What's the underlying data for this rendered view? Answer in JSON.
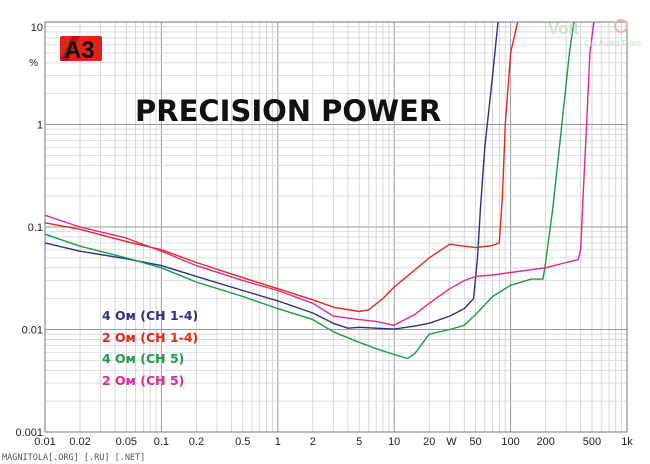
{
  "logo": {
    "text": "A3",
    "color": "#e3231b"
  },
  "watermark": {
    "text": "Volt",
    "sub": "Car Audio Team"
  },
  "footer": "MAGNITOLA[.ORG] [.RU] [.NET]",
  "chart_data": {
    "type": "line",
    "title": "PRECISION POWER",
    "x_scale": "log",
    "y_scale": "log",
    "xlim": [
      0.01,
      1000
    ],
    "ylim": [
      0.001,
      10
    ],
    "xlabel": "W",
    "ylabel": "%",
    "grid": true,
    "legend_position": "left-middle",
    "x_ticks": [
      {
        "v": 0.01,
        "label": "0.01"
      },
      {
        "v": 0.02,
        "label": "0.02"
      },
      {
        "v": 0.05,
        "label": "0.05"
      },
      {
        "v": 0.1,
        "label": "0.1"
      },
      {
        "v": 0.2,
        "label": "0.2"
      },
      {
        "v": 0.5,
        "label": "0.5"
      },
      {
        "v": 1,
        "label": "1"
      },
      {
        "v": 2,
        "label": "2"
      },
      {
        "v": 5,
        "label": "5"
      },
      {
        "v": 10,
        "label": "10"
      },
      {
        "v": 20,
        "label": "20"
      },
      {
        "v": 50,
        "label": "50"
      },
      {
        "v": 100,
        "label": "100"
      },
      {
        "v": 200,
        "label": "200"
      },
      {
        "v": 500,
        "label": "500"
      },
      {
        "v": 1000,
        "label": "1k"
      }
    ],
    "y_ticks": [
      {
        "v": 10,
        "label": "10"
      },
      {
        "v": 1,
        "label": "1"
      },
      {
        "v": 0.1,
        "label": "0.1"
      },
      {
        "v": 0.01,
        "label": "0.01"
      },
      {
        "v": 0.001,
        "label": "0.001"
      }
    ],
    "series": [
      {
        "name": "4 Ом (CH 1-4)",
        "color": "#2e2f86",
        "points": [
          [
            0.01,
            0.07
          ],
          [
            0.02,
            0.058
          ],
          [
            0.05,
            0.049
          ],
          [
            0.1,
            0.042
          ],
          [
            0.2,
            0.033
          ],
          [
            0.5,
            0.024
          ],
          [
            1,
            0.019
          ],
          [
            2,
            0.0145
          ],
          [
            3,
            0.0115
          ],
          [
            4,
            0.0103
          ],
          [
            5,
            0.0105
          ],
          [
            7,
            0.0103
          ],
          [
            10,
            0.0101
          ],
          [
            15,
            0.0108
          ],
          [
            20,
            0.0115
          ],
          [
            30,
            0.0135
          ],
          [
            40,
            0.016
          ],
          [
            48,
            0.02
          ],
          [
            52,
            0.05
          ],
          [
            55,
            0.15
          ],
          [
            60,
            0.6
          ],
          [
            70,
            3
          ],
          [
            78,
            10
          ]
        ]
      },
      {
        "name": "2 Ом (CH 1-4)",
        "color": "#e1291a",
        "points": [
          [
            0.01,
            0.11
          ],
          [
            0.02,
            0.095
          ],
          [
            0.05,
            0.072
          ],
          [
            0.1,
            0.06
          ],
          [
            0.2,
            0.045
          ],
          [
            0.5,
            0.032
          ],
          [
            1,
            0.025
          ],
          [
            2,
            0.0195
          ],
          [
            3,
            0.0165
          ],
          [
            5,
            0.015
          ],
          [
            6,
            0.0155
          ],
          [
            8,
            0.02
          ],
          [
            10,
            0.026
          ],
          [
            15,
            0.038
          ],
          [
            20,
            0.05
          ],
          [
            30,
            0.068
          ],
          [
            40,
            0.065
          ],
          [
            50,
            0.063
          ],
          [
            70,
            0.066
          ],
          [
            80,
            0.07
          ],
          [
            85,
            0.2
          ],
          [
            90,
            1
          ],
          [
            100,
            5
          ],
          [
            115,
            10
          ]
        ]
      },
      {
        "name": "4 Ом (CH 5)",
        "color": "#1a9a4a",
        "points": [
          [
            0.01,
            0.085
          ],
          [
            0.02,
            0.065
          ],
          [
            0.05,
            0.05
          ],
          [
            0.1,
            0.04
          ],
          [
            0.2,
            0.029
          ],
          [
            0.5,
            0.021
          ],
          [
            1,
            0.016
          ],
          [
            2,
            0.0125
          ],
          [
            3,
            0.0095
          ],
          [
            5,
            0.0075
          ],
          [
            7,
            0.0065
          ],
          [
            10,
            0.0057
          ],
          [
            13,
            0.0052
          ],
          [
            15,
            0.0058
          ],
          [
            20,
            0.009
          ],
          [
            30,
            0.01
          ],
          [
            40,
            0.011
          ],
          [
            50,
            0.014
          ],
          [
            70,
            0.021
          ],
          [
            100,
            0.027
          ],
          [
            150,
            0.031
          ],
          [
            190,
            0.031
          ],
          [
            200,
            0.045
          ],
          [
            230,
            0.15
          ],
          [
            270,
            0.8
          ],
          [
            320,
            5
          ],
          [
            350,
            10
          ]
        ]
      },
      {
        "name": "2 Ом (CH 5)",
        "color": "#dd2a8a",
        "points": [
          [
            0.01,
            0.13
          ],
          [
            0.02,
            0.1
          ],
          [
            0.05,
            0.078
          ],
          [
            0.1,
            0.058
          ],
          [
            0.2,
            0.042
          ],
          [
            0.5,
            0.03
          ],
          [
            1,
            0.024
          ],
          [
            2,
            0.018
          ],
          [
            3,
            0.0135
          ],
          [
            5,
            0.0125
          ],
          [
            7,
            0.012
          ],
          [
            10,
            0.011
          ],
          [
            15,
            0.014
          ],
          [
            20,
            0.018
          ],
          [
            30,
            0.025
          ],
          [
            40,
            0.03
          ],
          [
            50,
            0.033
          ],
          [
            70,
            0.034
          ],
          [
            100,
            0.036
          ],
          [
            200,
            0.04
          ],
          [
            300,
            0.045
          ],
          [
            380,
            0.048
          ],
          [
            400,
            0.06
          ],
          [
            420,
            0.2
          ],
          [
            450,
            1
          ],
          [
            480,
            5
          ],
          [
            520,
            10
          ]
        ]
      }
    ]
  }
}
